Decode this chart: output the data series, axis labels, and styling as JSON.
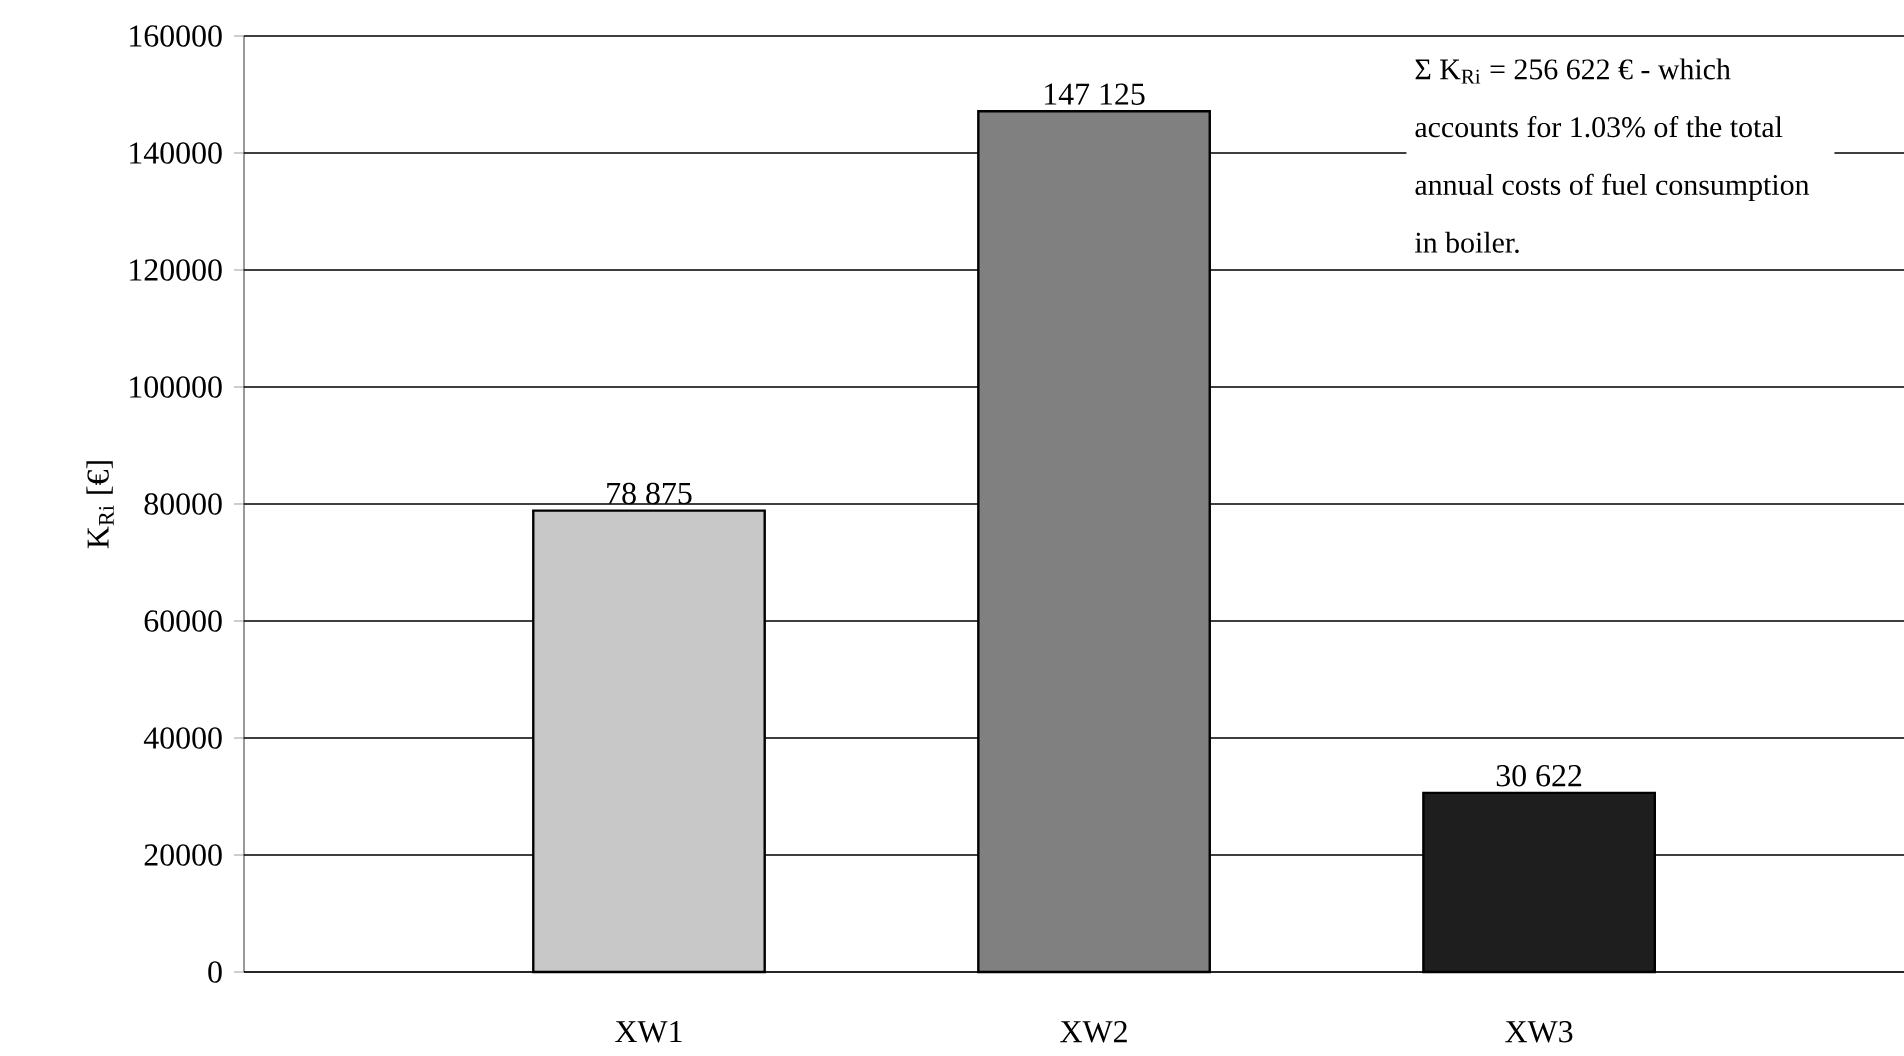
{
  "chart_data": {
    "type": "bar",
    "ylabel": "K$_{Ri}$ [€]",
    "categories": [
      "XW1",
      "XW2",
      "XW3"
    ],
    "values": [
      78875,
      147125,
      30622
    ],
    "colors": [
      "#c8c8c8",
      "#808080",
      "#1e1e1e"
    ],
    "value_labels": [
      "78 875",
      "147 125",
      "30 622"
    ],
    "ylim": [
      0,
      160000
    ],
    "yticks": [
      0,
      20000,
      40000,
      60000,
      80000,
      100000,
      120000,
      140000,
      160000
    ],
    "grid": "y",
    "annotations": [
      "Σ K$_{Ri}$ = 256 622 € - which accounts for 1.03% of the total annual costs of fuel consumption in boiler."
    ]
  }
}
